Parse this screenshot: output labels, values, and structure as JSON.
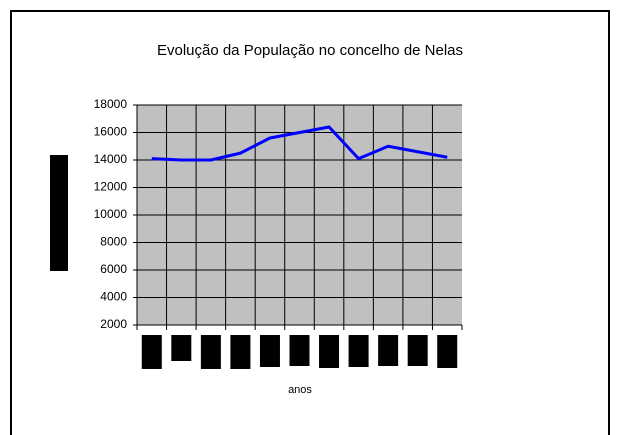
{
  "chart_data": {
    "type": "line",
    "title": "Evolução da População no concelho de Nelas",
    "x_label": "anos",
    "categories": [
      null,
      null,
      null,
      null,
      null,
      null,
      null,
      null,
      null,
      null,
      null
    ],
    "series": [
      {
        "name": null,
        "color": "#0000ff",
        "values": [
          14100,
          14000,
          14000,
          14500,
          15600,
          16000,
          16400,
          14100,
          15000,
          14600,
          14200
        ]
      }
    ],
    "ylim": [
      2000,
      18000
    ],
    "yticks": [
      2000,
      4000,
      6000,
      8000,
      10000,
      12000,
      14000,
      16000,
      18000
    ],
    "grid": true,
    "plot_background": "#c0c0c0"
  }
}
